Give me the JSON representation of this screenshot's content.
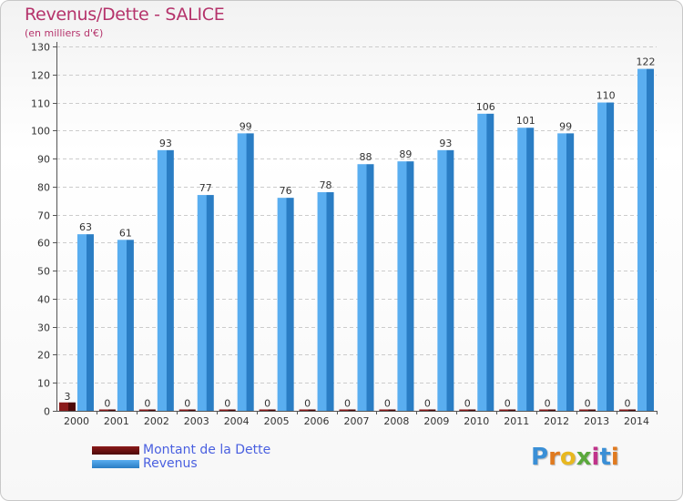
{
  "header": {
    "title": "Revenus/Dette - SALICE",
    "subtitle": "(en milliers d'€)"
  },
  "legend": {
    "debt": "Montant de la Dette",
    "revenue": "Revenus"
  },
  "logo": {
    "letters": [
      "P",
      "r",
      "o",
      "x",
      "i",
      "t",
      "i"
    ],
    "colors": [
      "#3a8fd6",
      "#e07a1f",
      "#e8b820",
      "#5aa83c",
      "#c0338a",
      "#3a8fd6",
      "#e07a1f"
    ]
  },
  "colors": {
    "revenue_light": "#5aaef0",
    "revenue_dark": "#2a7dc4",
    "debt_light": "#8b1a1a",
    "debt_dark": "#4d0808",
    "title": "#b5336b"
  },
  "chart_data": {
    "type": "bar",
    "title": "Revenus/Dette - SALICE",
    "ylabel": "(en milliers d'€)",
    "xlabel": "",
    "ylim": [
      0,
      130
    ],
    "yticks": [
      0,
      10,
      20,
      30,
      40,
      50,
      60,
      70,
      80,
      90,
      100,
      110,
      120,
      130
    ],
    "grid": true,
    "legend_position": "bottom-left",
    "categories": [
      "2000",
      "2001",
      "2002",
      "2003",
      "2004",
      "2005",
      "2006",
      "2007",
      "2008",
      "2009",
      "2010",
      "2011",
      "2012",
      "2013",
      "2014"
    ],
    "series": [
      {
        "name": "Montant de la Dette",
        "values": [
          3,
          0,
          0,
          0,
          0,
          0,
          0,
          0,
          0,
          0,
          0,
          0,
          0,
          0,
          0
        ]
      },
      {
        "name": "Revenus",
        "values": [
          63,
          61,
          93,
          77,
          99,
          76,
          78,
          88,
          89,
          93,
          106,
          101,
          99,
          110,
          122
        ]
      }
    ]
  }
}
